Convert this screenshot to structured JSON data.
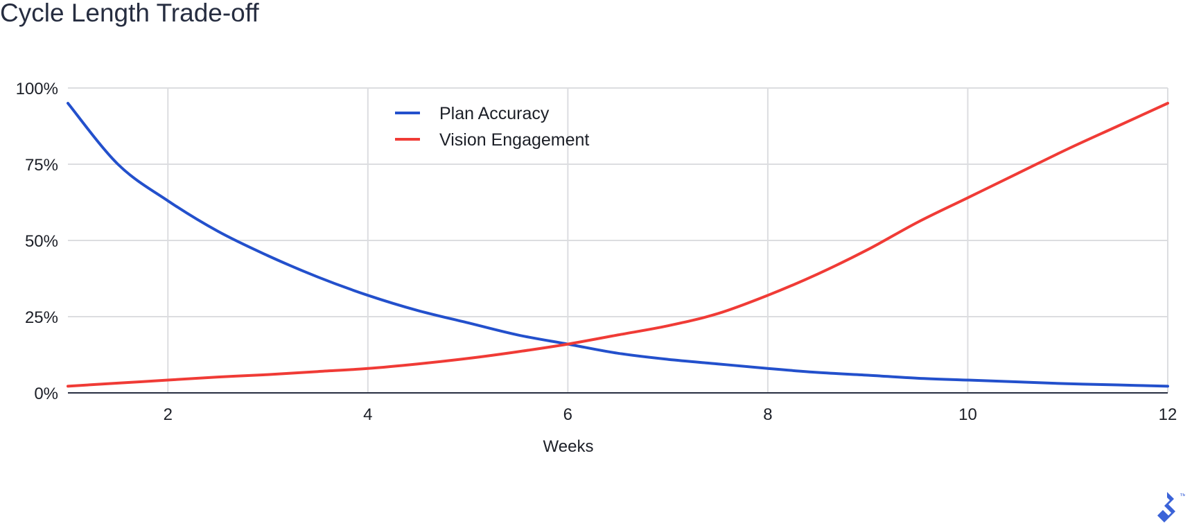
{
  "title": "Cycle Length Trade-off",
  "colors": {
    "plan_accuracy": "#2350cc",
    "vision_engagement": "#f03b36",
    "grid": "#dcdde0",
    "axis": "#262d40",
    "logo": "#3b63d8"
  },
  "logo_icon": "toptal-logo-icon",
  "logo_mark": "™",
  "chart_data": {
    "type": "line",
    "title": "",
    "xlabel": "Weeks",
    "ylabel": "",
    "xlim": [
      1,
      12
    ],
    "ylim": [
      0,
      100
    ],
    "x_ticks": [
      2,
      4,
      6,
      8,
      10,
      12
    ],
    "y_ticks": [
      0,
      25,
      50,
      75,
      100
    ],
    "y_tick_labels": [
      "0%",
      "25%",
      "50%",
      "75%",
      "100%"
    ],
    "grid": true,
    "legend_position": "top-center",
    "series": [
      {
        "name": "Plan Accuracy",
        "color": "#2350cc",
        "x": [
          1,
          1.5,
          2,
          2.5,
          3,
          3.5,
          4,
          4.5,
          5,
          5.5,
          6,
          6.5,
          7,
          7.5,
          8,
          8.5,
          9,
          9.5,
          10,
          10.5,
          11,
          11.5,
          12
        ],
        "y": [
          95,
          75,
          63,
          53,
          45,
          38,
          32,
          27,
          23,
          19,
          16,
          13,
          11,
          9.5,
          8,
          6.7,
          5.8,
          4.8,
          4.2,
          3.6,
          3.0,
          2.6,
          2.2
        ]
      },
      {
        "name": "Vision Engagement",
        "color": "#f03b36",
        "x": [
          1,
          1.5,
          2,
          2.5,
          3,
          3.5,
          4,
          4.5,
          5,
          5.5,
          6,
          6.5,
          7,
          7.5,
          8,
          8.5,
          9,
          9.5,
          10,
          10.5,
          11,
          11.5,
          12
        ],
        "y": [
          2.2,
          3.2,
          4.2,
          5.2,
          6.0,
          7.0,
          8.0,
          9.5,
          11.3,
          13.5,
          16,
          19,
          22,
          26,
          32,
          39,
          47,
          56,
          64,
          72,
          80,
          87.5,
          95
        ]
      }
    ]
  }
}
